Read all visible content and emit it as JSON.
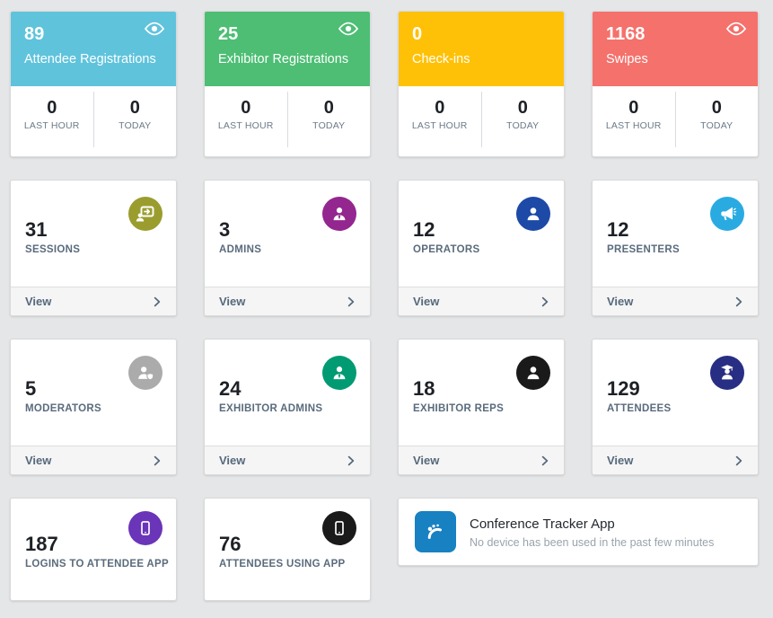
{
  "labels": {
    "last_hour": "LAST HOUR",
    "today": "TODAY",
    "view": "View"
  },
  "summary_cards": [
    {
      "value": "89",
      "label": "Attendee Registrations",
      "color": "#5fc3dc",
      "has_eye": true,
      "last_hour": "0",
      "today": "0"
    },
    {
      "value": "25",
      "label": "Exhibitor Registrations",
      "color": "#4dbe74",
      "has_eye": true,
      "last_hour": "0",
      "today": "0"
    },
    {
      "value": "0",
      "label": "Check-ins",
      "color": "#ffc107",
      "has_eye": false,
      "last_hour": "0",
      "today": "0"
    },
    {
      "value": "1168",
      "label": "Swipes",
      "color": "#f4716c",
      "has_eye": true,
      "last_hour": "0",
      "today": "0"
    }
  ],
  "stat_cards": [
    {
      "value": "31",
      "label": "SESSIONS",
      "icon": "presentation",
      "icon_color": "#9a9d2e",
      "has_view": true
    },
    {
      "value": "3",
      "label": "ADMINS",
      "icon": "admin-person",
      "icon_color": "#93278f",
      "has_view": true
    },
    {
      "value": "12",
      "label": "OPERATORS",
      "icon": "person",
      "icon_color": "#1d49a7",
      "has_view": true
    },
    {
      "value": "12",
      "label": "PRESENTERS",
      "icon": "megaphone",
      "icon_color": "#29abe2",
      "has_view": true
    },
    {
      "value": "5",
      "label": "MODERATORS",
      "icon": "person-shield",
      "icon_color": "#ababab",
      "has_view": true
    },
    {
      "value": "24",
      "label": "EXHIBITOR ADMINS",
      "icon": "admin-person",
      "icon_color": "#009b72",
      "has_view": true
    },
    {
      "value": "18",
      "label": "EXHIBITOR REPS",
      "icon": "person",
      "icon_color": "#1a1a1a",
      "has_view": true
    },
    {
      "value": "129",
      "label": "ATTENDEES",
      "icon": "graduate-person",
      "icon_color": "#272e83",
      "has_view": true
    },
    {
      "value": "187",
      "label": "LOGINS TO ATTENDEE APP",
      "icon": "mobile",
      "icon_color": "#6a35b8",
      "has_view": false
    },
    {
      "value": "76",
      "label": "ATTENDEES USING APP",
      "icon": "mobile",
      "icon_color": "#1a1a1a",
      "has_view": false
    }
  ],
  "tracker_card": {
    "title": "Conference Tracker App",
    "subtitle": "No device has been used in the past few minutes",
    "icon": "tracker-logo",
    "icon_color": "#1781c2"
  }
}
